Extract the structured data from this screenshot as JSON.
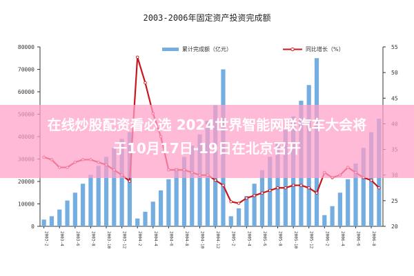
{
  "chart_data": {
    "type": "bar",
    "title": "2003-2006年固定资产投资完成额",
    "legend_position": "top",
    "grid": false,
    "y_left": {
      "ticks": [
        0,
        10000,
        20000,
        30000,
        40000,
        50000,
        60000,
        70000,
        80000
      ],
      "lim": [
        0,
        80000
      ]
    },
    "y_right": {
      "ticks": [
        20,
        25,
        30,
        35,
        40,
        45,
        50,
        55
      ],
      "lim": [
        20,
        55
      ]
    },
    "series": [
      {
        "name": "累计完成额（亿元）",
        "type": "bar",
        "axis": "left",
        "color": "#74aee0",
        "values": [
          3000,
          4500,
          7500,
          11500,
          15000,
          19000,
          23000,
          27000,
          31000,
          35000,
          39000,
          42000,
          3500,
          6500,
          11000,
          16000,
          21000,
          26000,
          31000,
          36000,
          41000,
          47000,
          54000,
          70000,
          4500,
          8000,
          13500,
          19000,
          25000,
          31000,
          37000,
          43000,
          49000,
          56000,
          63000,
          75000,
          5000,
          9000,
          15000,
          21000,
          28000,
          35000,
          42000,
          48000
        ]
      },
      {
        "name": "同比增长（%）",
        "type": "line",
        "axis": "right",
        "color": "#c8161d",
        "values": [
          33.5,
          33,
          31.5,
          31.5,
          32.5,
          33,
          33,
          32.5,
          32,
          31,
          30,
          28.8,
          53,
          48,
          42,
          37.5,
          31,
          31,
          31,
          30.5,
          30,
          30,
          29,
          28,
          24.8,
          24.5,
          25.5,
          26,
          26.5,
          27,
          27.5,
          27.5,
          28,
          28,
          27.5,
          26.5,
          30.5,
          29.5,
          30,
          31.5,
          30.5,
          29.5,
          29,
          27.5
        ]
      }
    ],
    "categories": [
      "2003-2",
      "2003-3",
      "2003-4",
      "2003-5",
      "2003-6",
      "2003-7",
      "2003-8",
      "2003-9",
      "2003-10",
      "2003-11",
      "2003-12",
      "2004-1",
      "2004-2",
      "2004-3",
      "2004-4",
      "2004-5",
      "2004-6",
      "2004-7",
      "2004-8",
      "2004-9",
      "2004-10",
      "2004-11",
      "2004-12",
      "2005-1",
      "2005-2",
      "2005-3",
      "2005-4",
      "2005-5",
      "2005-6",
      "2005-7",
      "2005-8",
      "2005-9",
      "2005-10",
      "2005-11",
      "2005-12",
      "2006-1",
      "2006-2",
      "2006-3",
      "2006-4",
      "2006-5",
      "2006-6",
      "2006-7",
      "2006-8",
      "2006-9"
    ],
    "x_tick_labels": [
      "2003-2",
      "2003-4",
      "2003-6",
      "2003-8",
      "2003-10",
      "2003-12",
      "2004-2",
      "2004-4",
      "2004-6",
      "2004-8",
      "2004-10",
      "2004-12",
      "2005-2",
      "2005-4",
      "2005-6",
      "2005-8",
      "2005-10",
      "2005-12",
      "2006-2",
      "2006-4",
      "2006-6",
      "2006-8"
    ]
  },
  "overlay": {
    "line1": "在线炒股配资看必选 2024世界智能网联汽车大会将",
    "line2": "于10月17日-19日在北京召开"
  }
}
